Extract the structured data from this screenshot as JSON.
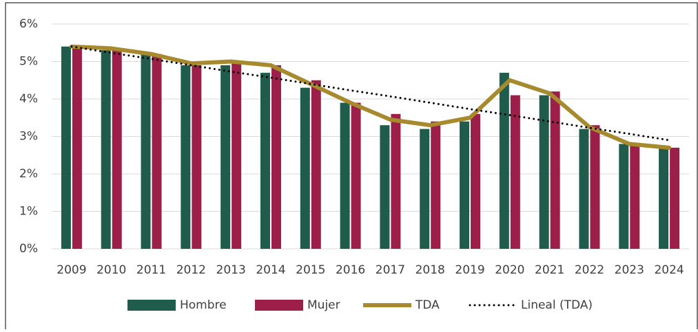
{
  "chart_data": {
    "type": "bar",
    "categories": [
      "2009",
      "2010",
      "2011",
      "2012",
      "2013",
      "2014",
      "2015",
      "2016",
      "2017",
      "2018",
      "2019",
      "2020",
      "2021",
      "2022",
      "2023",
      "2024"
    ],
    "series": [
      {
        "name": "Hombre",
        "type": "bar",
        "color": "#1f5c4b",
        "values": [
          5.4,
          5.3,
          5.2,
          4.9,
          4.9,
          4.7,
          4.3,
          3.9,
          3.3,
          3.2,
          3.4,
          4.7,
          4.1,
          3.2,
          2.8,
          2.7
        ]
      },
      {
        "name": "Mujer",
        "type": "bar",
        "color": "#9b1f48",
        "values": [
          5.4,
          5.3,
          5.2,
          4.9,
          5.0,
          4.9,
          4.5,
          3.9,
          3.6,
          3.4,
          3.6,
          4.1,
          4.2,
          3.3,
          2.8,
          2.7
        ]
      },
      {
        "name": "TDA",
        "type": "line",
        "color": "#a88a2e",
        "values": [
          5.4,
          5.35,
          5.2,
          4.95,
          5.0,
          4.9,
          4.4,
          3.9,
          3.45,
          3.3,
          3.5,
          4.5,
          4.15,
          3.25,
          2.8,
          2.7
        ]
      },
      {
        "name": "Lineal (TDA)",
        "type": "dotted",
        "color": "#000000",
        "values": [
          5.4,
          5.23,
          5.07,
          4.9,
          4.73,
          4.57,
          4.4,
          4.23,
          4.07,
          3.9,
          3.73,
          3.57,
          3.4,
          3.23,
          3.07,
          2.9
        ]
      }
    ],
    "ylim": [
      0,
      6
    ],
    "yticks": [
      {
        "value": 0,
        "label": "0%"
      },
      {
        "value": 1,
        "label": "1%"
      },
      {
        "value": 2,
        "label": "2%"
      },
      {
        "value": 3,
        "label": "3%"
      },
      {
        "value": 4,
        "label": "4%"
      },
      {
        "value": 5,
        "label": "5%"
      },
      {
        "value": 6,
        "label": "6%"
      }
    ],
    "grid": true,
    "legend": "bottom"
  }
}
